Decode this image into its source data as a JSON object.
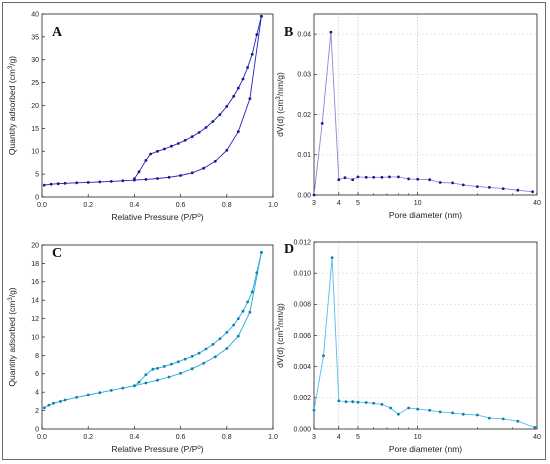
{
  "chart_data": [
    {
      "panel": "A",
      "type": "line",
      "color": "#2222bb",
      "markerColor": "#1a1a8a",
      "xlabel": "Relative Pressure (P/P",
      "xlabel_sup": "o",
      "xlabel_tail": ")",
      "ylabel": "Quantity adsorbed (cm",
      "ylabel_sup": "3",
      "ylabel_tail": "/g)",
      "xlim": [
        0,
        1.0
      ],
      "ylim": [
        0,
        40
      ],
      "xticks": [
        "0.0",
        "0.2",
        "0.4",
        "0.6",
        "0.8",
        "1.0"
      ],
      "yticks": [
        "0",
        "5",
        "10",
        "15",
        "20",
        "25",
        "30",
        "35",
        "40"
      ],
      "xtickValues": [
        0,
        0.2,
        0.4,
        0.6,
        0.8,
        1.0
      ],
      "ytickValues": [
        0,
        5,
        10,
        15,
        20,
        25,
        30,
        35,
        40
      ],
      "grid": false,
      "series": [
        {
          "x": [
            0.01,
            0.04,
            0.07,
            0.1,
            0.15,
            0.2,
            0.25,
            0.3,
            0.35,
            0.4,
            0.45,
            0.5,
            0.55,
            0.6,
            0.65,
            0.7,
            0.75,
            0.8,
            0.85,
            0.9,
            0.95
          ],
          "y": [
            2.6,
            2.8,
            2.9,
            3.0,
            3.1,
            3.2,
            3.3,
            3.4,
            3.55,
            3.7,
            3.85,
            4.05,
            4.3,
            4.7,
            5.3,
            6.3,
            7.8,
            10.2,
            14.3,
            21.5,
            39.5
          ]
        },
        {
          "x": [
            0.95,
            0.93,
            0.91,
            0.89,
            0.87,
            0.85,
            0.83,
            0.8,
            0.77,
            0.74,
            0.71,
            0.68,
            0.65,
            0.62,
            0.59,
            0.56,
            0.53,
            0.5,
            0.47,
            0.45,
            0.42,
            0.4
          ],
          "y": [
            39.5,
            35.5,
            31.2,
            28.3,
            25.8,
            23.8,
            22.0,
            19.8,
            18.0,
            16.5,
            15.2,
            14.1,
            13.2,
            12.4,
            11.7,
            11.1,
            10.5,
            10.0,
            9.4,
            8.0,
            5.5,
            4.0
          ]
        }
      ]
    },
    {
      "panel": "B",
      "type": "line",
      "color": "#8888dd",
      "markerColor": "#1a1a8a",
      "xlabel": "Pore diameter (nm)",
      "ylabel": "dV(d) (cm",
      "ylabel_sup": "3",
      "ylabel_tail": "/nm/g)",
      "xscale": "log",
      "xlim": [
        3,
        40
      ],
      "ylim": [
        0,
        0.045
      ],
      "xticks": [
        "3",
        "4",
        "5",
        "10",
        "40"
      ],
      "yticks": [
        "0.00",
        "0.01",
        "0.02",
        "0.03",
        "0.04"
      ],
      "xtickValues": [
        3,
        4,
        5,
        10,
        40
      ],
      "ytickValues": [
        0,
        0.01,
        0.02,
        0.03,
        0.04
      ],
      "grid": true,
      "series": [
        {
          "x": [
            3.0,
            3.3,
            3.65,
            4.0,
            4.3,
            4.7,
            5.0,
            5.5,
            6.0,
            6.6,
            7.2,
            8.0,
            9.0,
            10.0,
            11.5,
            13.0,
            15.0,
            17.0,
            20.0,
            23.0,
            27.0,
            32.0,
            38.0
          ],
          "y": [
            0.0,
            0.0178,
            0.0405,
            0.0038,
            0.0043,
            0.0038,
            0.0045,
            0.0044,
            0.0044,
            0.0044,
            0.0045,
            0.0045,
            0.004,
            0.0039,
            0.0038,
            0.0031,
            0.003,
            0.0025,
            0.0021,
            0.0019,
            0.0016,
            0.0012,
            0.0008
          ]
        }
      ]
    },
    {
      "panel": "C",
      "type": "line",
      "color": "#22aadd",
      "markerColor": "#0d7fb0",
      "xlabel": "Relative Pressure (P/P",
      "xlabel_sup": "o",
      "xlabel_tail": ")",
      "ylabel": "Quantity adsorbed (cm",
      "ylabel_sup": "3",
      "ylabel_tail": "/g)",
      "xlim": [
        0,
        1.0
      ],
      "ylim": [
        0,
        20
      ],
      "xticks": [
        "0.0",
        "0.2",
        "0.4",
        "0.6",
        "0.8",
        "1.0"
      ],
      "yticks": [
        "0",
        "2",
        "4",
        "6",
        "8",
        "10",
        "12",
        "14",
        "16",
        "18",
        "20"
      ],
      "xtickValues": [
        0,
        0.2,
        0.4,
        0.6,
        0.8,
        1.0
      ],
      "ytickValues": [
        0,
        2,
        4,
        6,
        8,
        10,
        12,
        14,
        16,
        18,
        20
      ],
      "grid": false,
      "series": [
        {
          "x": [
            0.01,
            0.03,
            0.05,
            0.08,
            0.1,
            0.15,
            0.2,
            0.25,
            0.3,
            0.35,
            0.4,
            0.45,
            0.5,
            0.55,
            0.6,
            0.65,
            0.7,
            0.75,
            0.8,
            0.85,
            0.9,
            0.95
          ],
          "y": [
            2.3,
            2.6,
            2.8,
            3.0,
            3.15,
            3.45,
            3.7,
            3.95,
            4.2,
            4.45,
            4.7,
            5.0,
            5.3,
            5.65,
            6.05,
            6.55,
            7.15,
            7.85,
            8.75,
            10.1,
            12.7,
            19.2
          ]
        },
        {
          "x": [
            0.95,
            0.93,
            0.91,
            0.89,
            0.87,
            0.85,
            0.83,
            0.8,
            0.77,
            0.74,
            0.71,
            0.68,
            0.65,
            0.62,
            0.59,
            0.56,
            0.53,
            0.5,
            0.48,
            0.45,
            0.42,
            0.4
          ],
          "y": [
            19.2,
            17.0,
            14.9,
            13.8,
            12.8,
            12.0,
            11.3,
            10.5,
            9.8,
            9.2,
            8.7,
            8.25,
            7.9,
            7.6,
            7.3,
            7.05,
            6.8,
            6.6,
            6.5,
            5.9,
            5.1,
            4.7
          ]
        }
      ]
    },
    {
      "panel": "D",
      "type": "line",
      "color": "#55bbee",
      "markerColor": "#0d7fb0",
      "xlabel": "Pore diameter (nm)",
      "ylabel": "dV(d) (cm",
      "ylabel_sup": "3",
      "ylabel_tail": "/nm/g)",
      "xscale": "log",
      "xlim": [
        3,
        40
      ],
      "ylim": [
        0,
        0.012
      ],
      "xticks": [
        "3",
        "4",
        "5",
        "10",
        "40"
      ],
      "yticks": [
        "0.000",
        "0.002",
        "0.004",
        "0.006",
        "0.008",
        "0.010",
        "0.012"
      ],
      "xtickValues": [
        3,
        4,
        5,
        10,
        40
      ],
      "ytickValues": [
        0,
        0.002,
        0.004,
        0.006,
        0.008,
        0.01,
        0.012
      ],
      "grid": true,
      "series": [
        {
          "x": [
            3.0,
            3.35,
            3.7,
            4.0,
            4.35,
            4.7,
            5.0,
            5.5,
            6.0,
            6.6,
            7.3,
            8.0,
            9.0,
            10.0,
            11.5,
            13.0,
            15.0,
            17.0,
            20.0,
            23.0,
            27.0,
            32.0,
            39.0
          ],
          "y": [
            0.0012,
            0.0047,
            0.011,
            0.0018,
            0.00175,
            0.00175,
            0.00172,
            0.0017,
            0.00165,
            0.00158,
            0.00135,
            0.00095,
            0.00135,
            0.00128,
            0.0012,
            0.0011,
            0.00103,
            0.00095,
            0.0009,
            0.0007,
            0.00065,
            0.0005,
            0.0001
          ]
        }
      ]
    }
  ]
}
